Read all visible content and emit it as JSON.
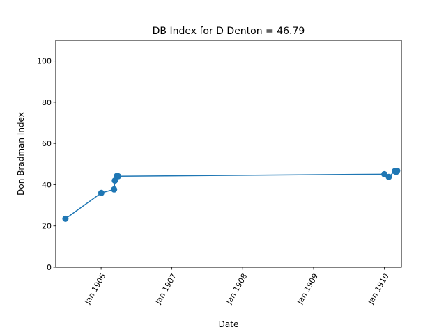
{
  "chart_data": {
    "type": "line",
    "title": "DB Index for D Denton = 46.79",
    "xlabel": "Date",
    "ylabel": "Don Bradman Index",
    "ylim": [
      0,
      110
    ],
    "xlim": [
      "1905-05-12",
      "1910-03-30"
    ],
    "grid": false,
    "legend": "none",
    "x_ticks": [
      {
        "date": "1906-01-01",
        "label": "Jan 1906"
      },
      {
        "date": "1907-01-01",
        "label": "Jan 1907"
      },
      {
        "date": "1908-01-01",
        "label": "Jan 1908"
      },
      {
        "date": "1909-01-01",
        "label": "Jan 1909"
      },
      {
        "date": "1910-01-01",
        "label": "Jan 1910"
      }
    ],
    "y_ticks": [
      0,
      20,
      40,
      60,
      80,
      100
    ],
    "series": [
      {
        "color": "#1f77b4",
        "points": [
          {
            "x": "1905-07-01",
            "y": 23.5
          },
          {
            "x": "1906-01-02",
            "y": 36.0
          },
          {
            "x": "1906-03-09",
            "y": 37.7
          },
          {
            "x": "1906-03-13",
            "y": 42.0
          },
          {
            "x": "1906-03-24",
            "y": 44.3
          },
          {
            "x": "1906-03-30",
            "y": 44.1
          },
          {
            "x": "1910-01-01",
            "y": 45.1
          },
          {
            "x": "1910-01-24",
            "y": 43.8
          },
          {
            "x": "1910-02-24",
            "y": 46.6
          },
          {
            "x": "1910-03-03",
            "y": 46.2
          },
          {
            "x": "1910-03-08",
            "y": 46.79
          }
        ]
      }
    ]
  }
}
